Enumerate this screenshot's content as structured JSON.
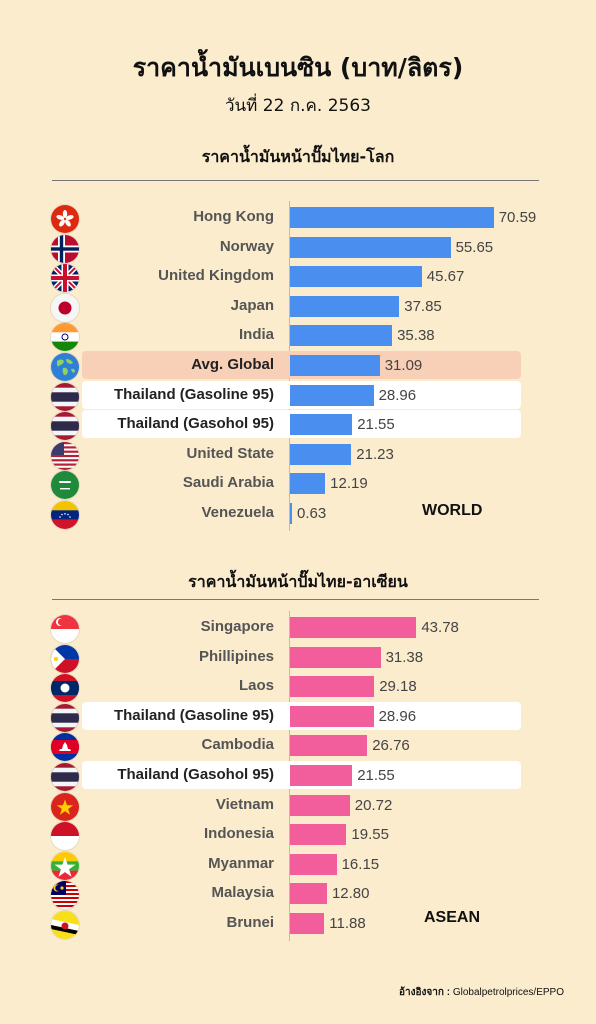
{
  "header": {
    "title": "ราคาน้ำมันเบนซิน (บาท/ลิตร)",
    "subtitle": "วันที่ 22 ก.ค. 2563"
  },
  "source": {
    "label": "อ้างอิงจาก :",
    "text": "Globalpetrolprices/EPPO"
  },
  "chart_data": [
    {
      "type": "bar",
      "orientation": "horizontal",
      "title": "ราคาน้ำมันหน้าปั๊มไทย-โลก",
      "tag": "WORLD",
      "bar_color": "#4a8ef0",
      "categories": [
        "Hong Kong",
        "Norway",
        "United Kingdom",
        "Japan",
        "India",
        "Avg. Global",
        "Thailand (Gasoline 95)",
        "Thailand (Gasohol 95)",
        "United State",
        "Saudi Arabia",
        "Venezuela"
      ],
      "values": [
        70.59,
        55.65,
        45.67,
        37.85,
        35.38,
        31.09,
        28.96,
        21.55,
        21.23,
        12.19,
        0.63
      ],
      "value_labels": [
        "70.59",
        "55.65",
        "45.67",
        "37.85",
        "35.38",
        "31.09",
        "28.96",
        "21.55",
        "21.23",
        "12.19",
        "0.63"
      ],
      "flags": [
        "hong-kong-flag-icon",
        "norway-flag-icon",
        "uk-flag-icon",
        "japan-flag-icon",
        "india-flag-icon",
        "globe-icon",
        "thailand-flag-icon",
        "thailand-flag-icon",
        "usa-flag-icon",
        "saudi-arabia-flag-icon",
        "venezuela-flag-icon"
      ],
      "highlights": {
        "5": "#f8cfb7",
        "6": "#ffffff",
        "7": "#ffffff"
      }
    },
    {
      "type": "bar",
      "orientation": "horizontal",
      "title": "ราคาน้ำมันหน้าปั๊มไทย-อาเซียน",
      "tag": "ASEAN",
      "bar_color": "#f25e9c",
      "categories": [
        "Singapore",
        "Phillipines",
        "Laos",
        "Thailand (Gasoline 95)",
        "Cambodia",
        "Thailand (Gasohol 95)",
        "Vietnam",
        "Indonesia",
        "Myanmar",
        "Malaysia",
        "Brunei"
      ],
      "values": [
        43.78,
        31.38,
        29.18,
        28.96,
        26.76,
        21.55,
        20.72,
        19.55,
        16.15,
        12.8,
        11.88
      ],
      "value_labels": [
        "43.78",
        "31.38",
        "29.18",
        "28.96",
        "26.76",
        "21.55",
        "20.72",
        "19.55",
        "16.15",
        "12.80",
        "11.88"
      ],
      "flags": [
        "singapore-flag-icon",
        "philippines-flag-icon",
        "laos-flag-icon",
        "thailand-flag-icon",
        "cambodia-flag-icon",
        "thailand-flag-icon",
        "vietnam-flag-icon",
        "indonesia-flag-icon",
        "myanmar-flag-icon",
        "malaysia-flag-icon",
        "brunei-flag-icon"
      ],
      "highlights": {
        "3": "#ffffff",
        "5": "#ffffff"
      }
    }
  ]
}
